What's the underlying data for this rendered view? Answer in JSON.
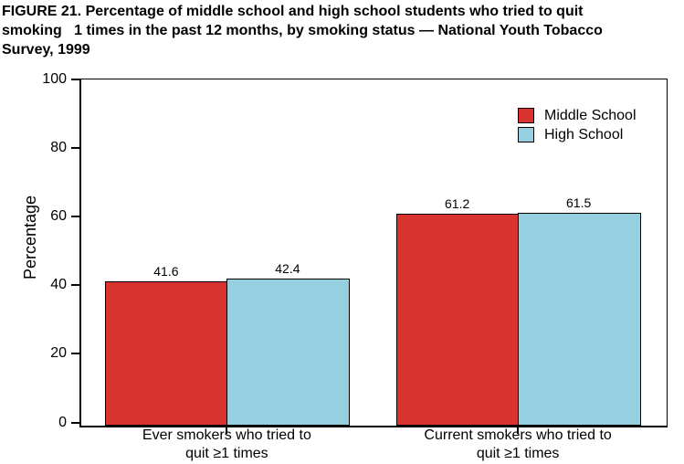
{
  "figure_title": {
    "lines": [
      "FIGURE 21. Percentage of middle school and high school students who tried to quit",
      "smoking   1 times in the past 12 months, by smoking status — National Youth Tobacco",
      "Survey, 1999"
    ]
  },
  "chart_data": {
    "type": "bar",
    "title": "FIGURE 21. Percentage of middle school and high school students who tried to quit smoking ≥1 times in the past 12 months, by smoking status — National Youth Tobacco Survey, 1999",
    "categories": [
      "Ever smokers who tried to\nquit ≥1 times",
      "Current smokers who tried to\nquit ≥1 times"
    ],
    "series": [
      {
        "name": "Middle School",
        "color": "#d93330",
        "values": [
          41.6,
          61.2
        ]
      },
      {
        "name": "High School",
        "color": "#96cfe0",
        "values": [
          42.4,
          61.5
        ]
      }
    ],
    "xlabel": "",
    "ylabel": "Percentage",
    "ylim": [
      0,
      100
    ],
    "yticks": [
      0,
      20,
      40,
      60,
      80,
      100
    ],
    "grid": false,
    "legend_position": "top-right",
    "axis_color": "#000000",
    "background_color": "#ffffff"
  }
}
